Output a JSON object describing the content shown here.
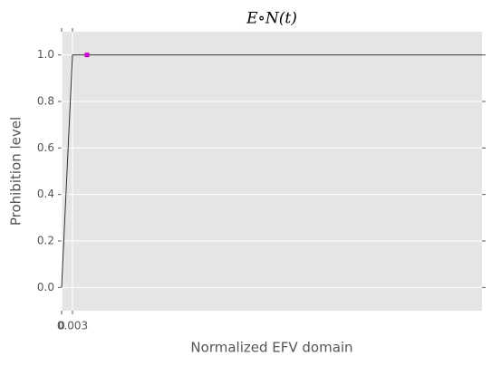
{
  "chart_data": {
    "type": "line",
    "title": "E∘N(t)",
    "xlabel": "Normalized EFV domain",
    "ylabel": "Prohibition level",
    "x": [
      0,
      0.003,
      0.116
    ],
    "series": [
      {
        "name": "E∘N(t)",
        "color": "#333333",
        "values": [
          0,
          1,
          1
        ]
      }
    ],
    "marker": {
      "x": 0.007,
      "y": 1,
      "color": "#cc00cc"
    },
    "xlim": [
      0,
      0.116
    ],
    "ylim": [
      -0.1,
      1.1
    ],
    "xticks": [
      0,
      0.003
    ],
    "yticks": [
      {
        "value": 0,
        "label": "0.0"
      },
      {
        "value": 0.2,
        "label": "0.2"
      },
      {
        "value": 0.4,
        "label": "0.4"
      },
      {
        "value": 0.6,
        "label": "0.6"
      },
      {
        "value": 0.8,
        "label": "0.8"
      },
      {
        "value": 1,
        "label": "1.0"
      }
    ],
    "grid": true
  }
}
